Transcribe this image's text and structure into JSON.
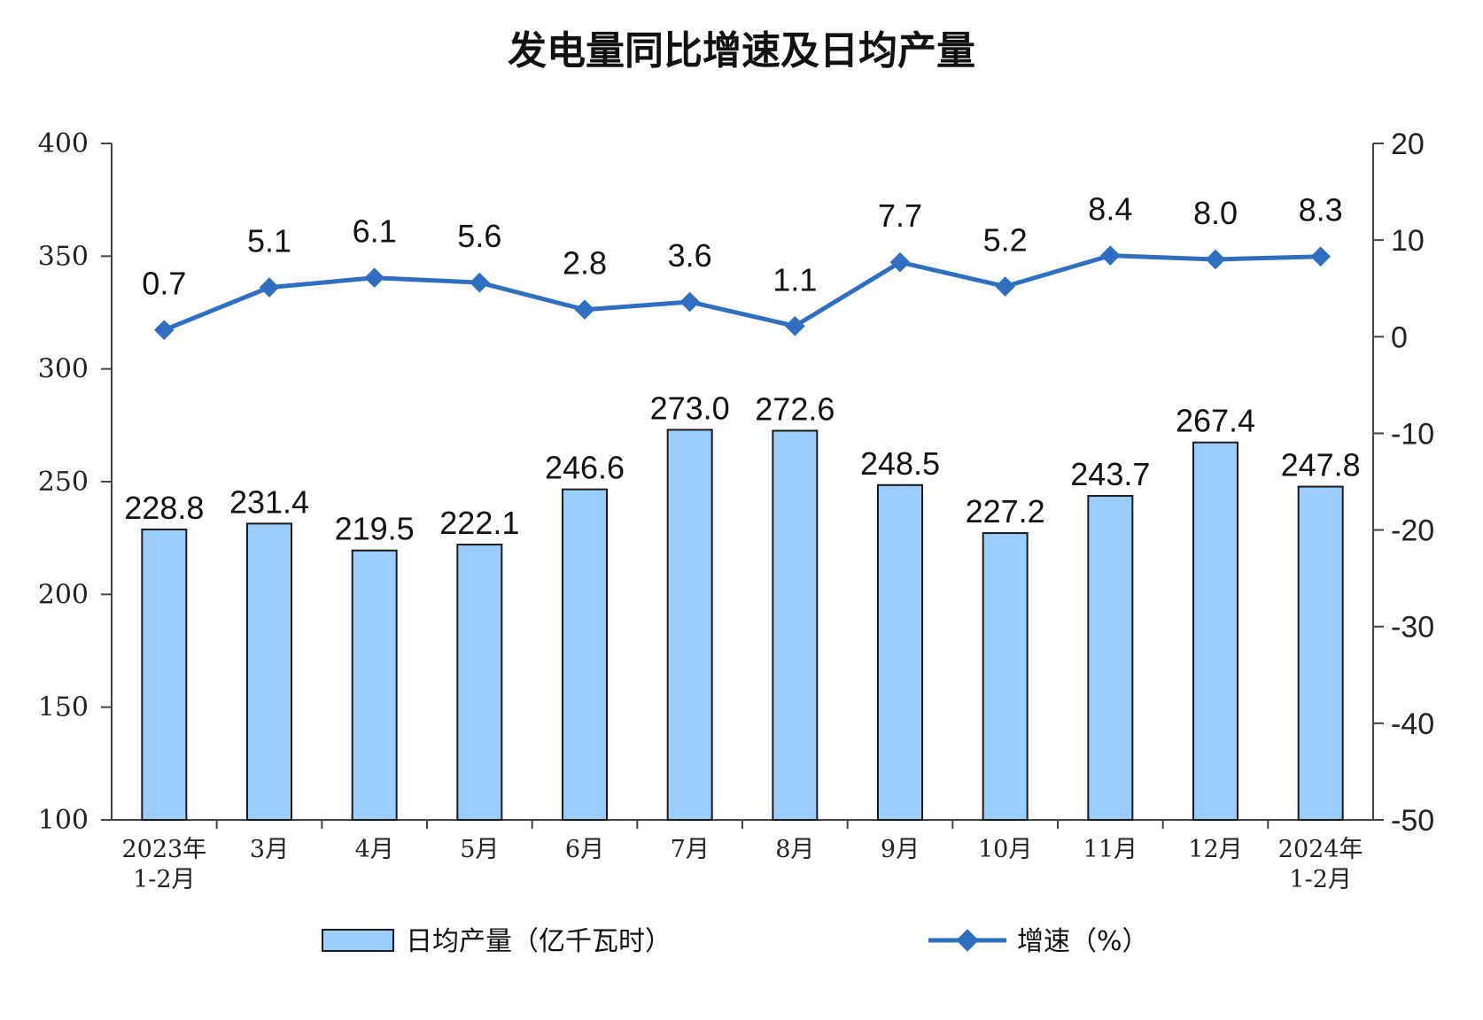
{
  "chart_data": {
    "type": "bar",
    "title": "发电量同比增速及日均产量",
    "categories": [
      [
        "2023年",
        "1-2月"
      ],
      [
        "3月"
      ],
      [
        "4月"
      ],
      [
        "5月"
      ],
      [
        "6月"
      ],
      [
        "7月"
      ],
      [
        "8月"
      ],
      [
        "9月"
      ],
      [
        "10月"
      ],
      [
        "11月"
      ],
      [
        "12月"
      ],
      [
        "2024年",
        "1-2月"
      ]
    ],
    "series": [
      {
        "name": "日均产量（亿千瓦时）",
        "type": "bar",
        "axis": "left",
        "values": [
          228.8,
          231.4,
          219.5,
          222.1,
          246.6,
          273.0,
          272.6,
          248.5,
          227.2,
          243.7,
          267.4,
          247.8
        ],
        "labels": [
          "228.8",
          "231.4",
          "219.5",
          "222.1",
          "246.6",
          "273.0",
          "272.6",
          "248.5",
          "227.2",
          "243.7",
          "267.4",
          "247.8"
        ]
      },
      {
        "name": "增速（%）",
        "type": "line",
        "axis": "right",
        "values": [
          0.7,
          5.1,
          6.1,
          5.6,
          2.8,
          3.6,
          1.1,
          7.7,
          5.2,
          8.4,
          8.0,
          8.3
        ],
        "labels": [
          "0.7",
          "5.1",
          "6.1",
          "5.6",
          "2.8",
          "3.6",
          "1.1",
          "7.7",
          "5.2",
          "8.4",
          "8.0",
          "8.3"
        ]
      }
    ],
    "y_left": {
      "range": [
        100,
        400
      ],
      "ticks": [
        100,
        150,
        200,
        250,
        300,
        350,
        400
      ]
    },
    "y_right": {
      "range": [
        -50,
        20
      ],
      "ticks": [
        -50,
        -40,
        -30,
        -20,
        -10,
        0,
        10,
        20
      ]
    },
    "grid": false,
    "legend_position": "bottom",
    "colors": {
      "bar_fill": "#99CCFF",
      "bar_stroke": "#1a1a1a",
      "line": "#2E6FC2",
      "axis": "#444444"
    }
  }
}
